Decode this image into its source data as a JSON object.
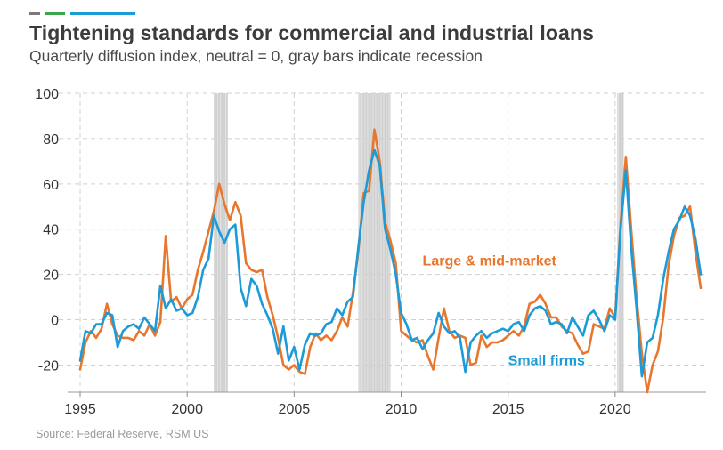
{
  "header": {
    "title": "Tightening standards for commercial and industrial loans",
    "subtitle": "Quarterly diffusion index, neutral = 0, gray bars indicate recession"
  },
  "footer": {
    "source": "Source: Federal Reserve, RSM US"
  },
  "colors": {
    "large": "#e8762d",
    "small": "#1b9bd7",
    "recession": "#c8c8c8",
    "grid": "#d0d0d0",
    "deco": [
      "#7a7a7a",
      "#3aa54a",
      "#1b9bd7"
    ]
  },
  "chart_data": {
    "type": "line",
    "xlim": [
      1994.75,
      2024.25
    ],
    "ylim": [
      -32,
      100
    ],
    "x_ticks": [
      1995,
      2000,
      2005,
      2010,
      2015,
      2020
    ],
    "x_tick_labels": [
      "1995",
      "2000",
      "2005",
      "2010",
      "2015",
      "2020"
    ],
    "y_ticks": [
      -20,
      0,
      20,
      40,
      60,
      80,
      100
    ],
    "y_tick_labels": [
      "-20",
      "0",
      "20",
      "40",
      "60",
      "80",
      "100"
    ],
    "grid": "dashed",
    "recessions": [
      [
        2001.25,
        2001.9
      ],
      [
        2008.0,
        2009.5
      ],
      [
        2020.1,
        2020.4
      ]
    ],
    "annotations": [
      {
        "text": "Large & mid-market",
        "series": "large",
        "x": 2011.0,
        "y": 24
      },
      {
        "text": "Small firms",
        "series": "small",
        "x": 2015.0,
        "y": -20
      }
    ],
    "series": [
      {
        "key": "large",
        "name": "Large & mid-market",
        "points": [
          [
            1995.0,
            -22
          ],
          [
            1995.25,
            -10
          ],
          [
            1995.5,
            -5
          ],
          [
            1995.75,
            -8
          ],
          [
            1996.0,
            -4
          ],
          [
            1996.25,
            7
          ],
          [
            1996.5,
            -2
          ],
          [
            1996.75,
            -7
          ],
          [
            1997.0,
            -8
          ],
          [
            1997.25,
            -8
          ],
          [
            1997.5,
            -9
          ],
          [
            1997.75,
            -5
          ],
          [
            1998.0,
            -7
          ],
          [
            1998.25,
            -2
          ],
          [
            1998.5,
            -7
          ],
          [
            1998.75,
            -1
          ],
          [
            1999.0,
            37
          ],
          [
            1999.25,
            8
          ],
          [
            1999.5,
            10
          ],
          [
            1999.75,
            5
          ],
          [
            2000.0,
            9
          ],
          [
            2000.25,
            11
          ],
          [
            2000.5,
            22
          ],
          [
            2000.75,
            30
          ],
          [
            2001.0,
            39
          ],
          [
            2001.25,
            48
          ],
          [
            2001.5,
            60
          ],
          [
            2001.75,
            51
          ],
          [
            2002.0,
            44
          ],
          [
            2002.25,
            52
          ],
          [
            2002.5,
            46
          ],
          [
            2002.75,
            25
          ],
          [
            2003.0,
            22
          ],
          [
            2003.25,
            21
          ],
          [
            2003.5,
            22
          ],
          [
            2003.75,
            10
          ],
          [
            2004.0,
            2
          ],
          [
            2004.25,
            -8
          ],
          [
            2004.5,
            -20
          ],
          [
            2004.75,
            -22
          ],
          [
            2005.0,
            -20
          ],
          [
            2005.25,
            -23
          ],
          [
            2005.5,
            -24
          ],
          [
            2005.75,
            -12
          ],
          [
            2006.0,
            -6
          ],
          [
            2006.25,
            -9
          ],
          [
            2006.5,
            -7
          ],
          [
            2006.75,
            -9
          ],
          [
            2007.0,
            -5
          ],
          [
            2007.25,
            1
          ],
          [
            2007.5,
            -3
          ],
          [
            2007.75,
            12
          ],
          [
            2008.0,
            30
          ],
          [
            2008.25,
            56
          ],
          [
            2008.5,
            57
          ],
          [
            2008.75,
            84
          ],
          [
            2009.0,
            70
          ],
          [
            2009.25,
            43
          ],
          [
            2009.5,
            35
          ],
          [
            2009.75,
            25
          ],
          [
            2010.0,
            -5
          ],
          [
            2010.25,
            -7
          ],
          [
            2010.5,
            -9
          ],
          [
            2010.75,
            -10
          ],
          [
            2011.0,
            -9
          ],
          [
            2011.25,
            -16
          ],
          [
            2011.5,
            -22
          ],
          [
            2011.75,
            -8
          ],
          [
            2012.0,
            5
          ],
          [
            2012.25,
            -5
          ],
          [
            2012.5,
            -8
          ],
          [
            2012.75,
            -7
          ],
          [
            2013.0,
            -8
          ],
          [
            2013.25,
            -20
          ],
          [
            2013.5,
            -19
          ],
          [
            2013.75,
            -7
          ],
          [
            2014.0,
            -12
          ],
          [
            2014.25,
            -10
          ],
          [
            2014.5,
            -10
          ],
          [
            2014.75,
            -9
          ],
          [
            2015.0,
            -7
          ],
          [
            2015.25,
            -5
          ],
          [
            2015.5,
            -7
          ],
          [
            2015.75,
            -3
          ],
          [
            2016.0,
            7
          ],
          [
            2016.25,
            8
          ],
          [
            2016.5,
            11
          ],
          [
            2016.75,
            7
          ],
          [
            2017.0,
            1
          ],
          [
            2017.25,
            1
          ],
          [
            2017.5,
            -3
          ],
          [
            2017.75,
            -5
          ],
          [
            2018.0,
            -6
          ],
          [
            2018.25,
            -11
          ],
          [
            2018.5,
            -15
          ],
          [
            2018.75,
            -14
          ],
          [
            2019.0,
            -2
          ],
          [
            2019.25,
            -3
          ],
          [
            2019.5,
            -4
          ],
          [
            2019.75,
            5
          ],
          [
            2020.0,
            1
          ],
          [
            2020.25,
            42
          ],
          [
            2020.5,
            72
          ],
          [
            2020.75,
            40
          ],
          [
            2021.0,
            10
          ],
          [
            2021.25,
            -15
          ],
          [
            2021.5,
            -32
          ],
          [
            2021.75,
            -20
          ],
          [
            2022.0,
            -14
          ],
          [
            2022.25,
            1
          ],
          [
            2022.5,
            24
          ],
          [
            2022.75,
            37
          ],
          [
            2023.0,
            45
          ],
          [
            2023.25,
            46
          ],
          [
            2023.5,
            50
          ],
          [
            2023.75,
            30
          ],
          [
            2024.0,
            14
          ]
        ]
      },
      {
        "key": "small",
        "name": "Small firms",
        "points": [
          [
            1995.0,
            -18
          ],
          [
            1995.25,
            -5
          ],
          [
            1995.5,
            -6
          ],
          [
            1995.75,
            -2
          ],
          [
            1996.0,
            -2
          ],
          [
            1996.25,
            3
          ],
          [
            1996.5,
            2
          ],
          [
            1996.75,
            -12
          ],
          [
            1997.0,
            -5
          ],
          [
            1997.25,
            -3
          ],
          [
            1997.5,
            -2
          ],
          [
            1997.75,
            -4
          ],
          [
            1998.0,
            1
          ],
          [
            1998.25,
            -2
          ],
          [
            1998.5,
            -5
          ],
          [
            1998.75,
            15
          ],
          [
            1999.0,
            5
          ],
          [
            1999.25,
            9
          ],
          [
            1999.5,
            4
          ],
          [
            1999.75,
            5
          ],
          [
            2000.0,
            2
          ],
          [
            2000.25,
            3
          ],
          [
            2000.5,
            10
          ],
          [
            2000.75,
            22
          ],
          [
            2001.0,
            27
          ],
          [
            2001.25,
            46
          ],
          [
            2001.5,
            39
          ],
          [
            2001.75,
            34
          ],
          [
            2002.0,
            40
          ],
          [
            2002.25,
            42
          ],
          [
            2002.5,
            14
          ],
          [
            2002.75,
            6
          ],
          [
            2003.0,
            18
          ],
          [
            2003.25,
            15
          ],
          [
            2003.5,
            7
          ],
          [
            2003.75,
            2
          ],
          [
            2004.0,
            -4
          ],
          [
            2004.25,
            -15
          ],
          [
            2004.5,
            -3
          ],
          [
            2004.75,
            -18
          ],
          [
            2005.0,
            -12
          ],
          [
            2005.25,
            -22
          ],
          [
            2005.5,
            -11
          ],
          [
            2005.75,
            -6
          ],
          [
            2006.0,
            -7
          ],
          [
            2006.25,
            -6
          ],
          [
            2006.5,
            -2
          ],
          [
            2006.75,
            -1
          ],
          [
            2007.0,
            5
          ],
          [
            2007.25,
            2
          ],
          [
            2007.5,
            8
          ],
          [
            2007.75,
            10
          ],
          [
            2008.0,
            32
          ],
          [
            2008.25,
            52
          ],
          [
            2008.5,
            66
          ],
          [
            2008.75,
            75
          ],
          [
            2009.0,
            68
          ],
          [
            2009.25,
            40
          ],
          [
            2009.5,
            31
          ],
          [
            2009.75,
            20
          ],
          [
            2010.0,
            3
          ],
          [
            2010.25,
            -2
          ],
          [
            2010.5,
            -9
          ],
          [
            2010.75,
            -8
          ],
          [
            2011.0,
            -13
          ],
          [
            2011.25,
            -9
          ],
          [
            2011.5,
            -6
          ],
          [
            2011.75,
            3
          ],
          [
            2012.0,
            -3
          ],
          [
            2012.25,
            -6
          ],
          [
            2012.5,
            -5
          ],
          [
            2012.75,
            -8
          ],
          [
            2013.0,
            -23
          ],
          [
            2013.25,
            -10
          ],
          [
            2013.5,
            -7
          ],
          [
            2013.75,
            -5
          ],
          [
            2014.0,
            -8
          ],
          [
            2014.25,
            -6
          ],
          [
            2014.5,
            -5
          ],
          [
            2014.75,
            -4
          ],
          [
            2015.0,
            -5
          ],
          [
            2015.25,
            -2
          ],
          [
            2015.5,
            -1
          ],
          [
            2015.75,
            -5
          ],
          [
            2016.0,
            2
          ],
          [
            2016.25,
            5
          ],
          [
            2016.5,
            6
          ],
          [
            2016.75,
            4
          ],
          [
            2017.0,
            -2
          ],
          [
            2017.25,
            -1
          ],
          [
            2017.5,
            -2
          ],
          [
            2017.75,
            -6
          ],
          [
            2018.0,
            1
          ],
          [
            2018.25,
            -3
          ],
          [
            2018.5,
            -7
          ],
          [
            2018.75,
            2
          ],
          [
            2019.0,
            4
          ],
          [
            2019.25,
            0
          ],
          [
            2019.5,
            -5
          ],
          [
            2019.75,
            2
          ],
          [
            2020.0,
            0
          ],
          [
            2020.25,
            40
          ],
          [
            2020.5,
            66
          ],
          [
            2020.75,
            32
          ],
          [
            2021.0,
            5
          ],
          [
            2021.25,
            -25
          ],
          [
            2021.5,
            -10
          ],
          [
            2021.75,
            -8
          ],
          [
            2022.0,
            2
          ],
          [
            2022.25,
            18
          ],
          [
            2022.5,
            30
          ],
          [
            2022.75,
            40
          ],
          [
            2023.0,
            44
          ],
          [
            2023.25,
            50
          ],
          [
            2023.5,
            46
          ],
          [
            2023.75,
            36
          ],
          [
            2024.0,
            20
          ]
        ]
      }
    ]
  }
}
